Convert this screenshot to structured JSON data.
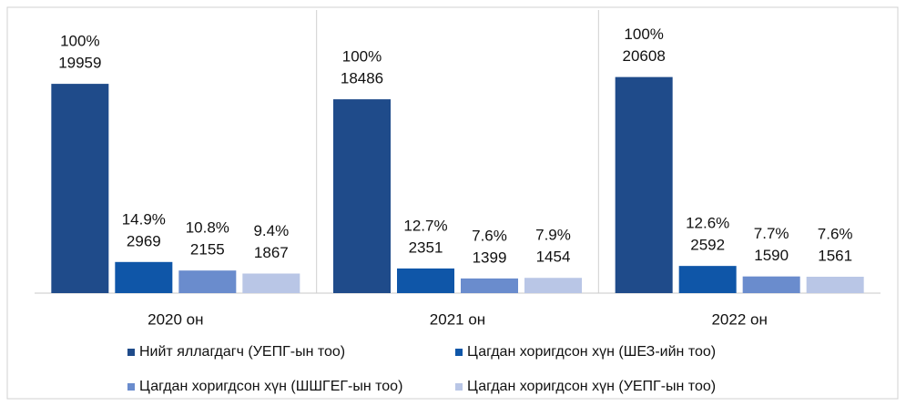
{
  "chart_data": {
    "type": "bar",
    "categories": [
      "2020 он",
      "2021 он",
      "2022 он"
    ],
    "ylim": [
      0,
      27000
    ],
    "legend": "bottom",
    "series": [
      {
        "name": "Нийт яллагдагч (УЕПГ-ын тоо)",
        "color": "#1f4b8a",
        "values": [
          19959,
          18486,
          20608
        ],
        "percent_labels": [
          "100%",
          "100%",
          "100%"
        ]
      },
      {
        "name": "Цагдан хоригдсон хүн (ШЕЗ-ийн тоо)",
        "color": "#0f56a8",
        "values": [
          2969,
          2351,
          2592
        ],
        "percent_labels": [
          "14.9%",
          "12.7%",
          "12.6%"
        ]
      },
      {
        "name": "Цагдан хоригдсон хүн (ШШГЕГ-ын тоо)",
        "color": "#6a8ccd",
        "values": [
          2155,
          1399,
          1590
        ],
        "percent_labels": [
          "10.8%",
          "7.6%",
          "7.7%"
        ]
      },
      {
        "name": "Цагдан хоригдсон хүн (УЕПГ-ын тоо)",
        "color": "#b9c6e6",
        "values": [
          1867,
          1454,
          1561
        ],
        "percent_labels": [
          "9.4%",
          "7.9%",
          "7.6%"
        ]
      }
    ]
  }
}
